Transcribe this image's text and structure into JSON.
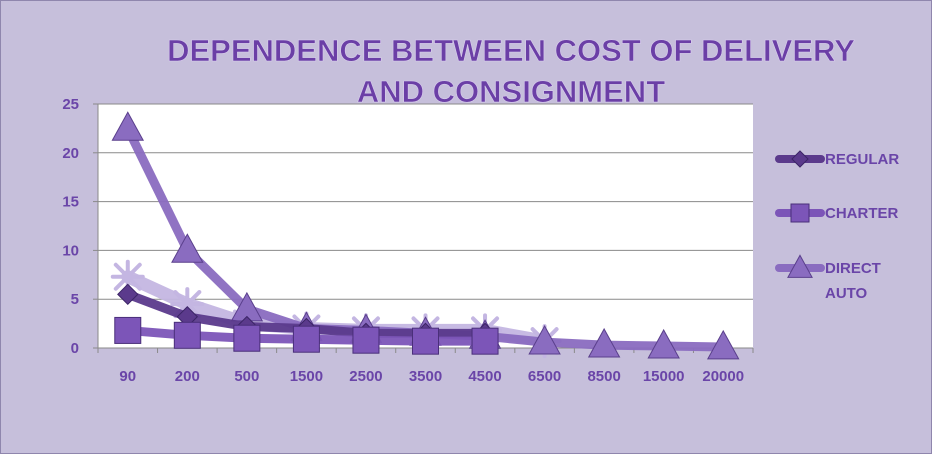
{
  "chart_data": {
    "type": "line",
    "title_lines": [
      "DEPENDENCE BETWEEN COST OF DELIVERY",
      "AND CONSIGNMENT"
    ],
    "xlabel": "",
    "ylabel": "",
    "categories": [
      "90",
      "200",
      "500",
      "1500",
      "2500",
      "3500",
      "4500",
      "6500",
      "8500",
      "15000",
      "20000"
    ],
    "y_ticks": [
      "0",
      "5",
      "10",
      "15",
      "20",
      "25"
    ],
    "ylim": [
      0,
      25
    ],
    "grid": true,
    "legend_position": "right",
    "series": [
      {
        "name": "REGULAR",
        "marker": "diamond",
        "color": "#5b3a8c",
        "values": [
          5.5,
          3.2,
          2.2,
          2.0,
          1.5,
          1.5,
          1.5,
          null,
          null,
          null,
          null
        ]
      },
      {
        "name": "CHARTER",
        "marker": "square",
        "color": "#7c55b8",
        "values": [
          1.8,
          1.3,
          1.0,
          0.9,
          0.8,
          0.7,
          0.7,
          null,
          null,
          null,
          null
        ]
      },
      {
        "name": "DIRECT\nAUTO",
        "marker": "triangle",
        "color": "#8a6cc0",
        "values": [
          22.5,
          10.0,
          4.0,
          2.0,
          1.8,
          1.5,
          1.2,
          0.6,
          0.3,
          0.2,
          0.1
        ]
      },
      {
        "name": "",
        "marker": "star",
        "color": "#c4b6e2",
        "values": [
          7.3,
          4.5,
          2.5,
          2.0,
          1.8,
          1.8,
          1.8,
          0.7,
          null,
          null,
          null
        ]
      }
    ]
  }
}
